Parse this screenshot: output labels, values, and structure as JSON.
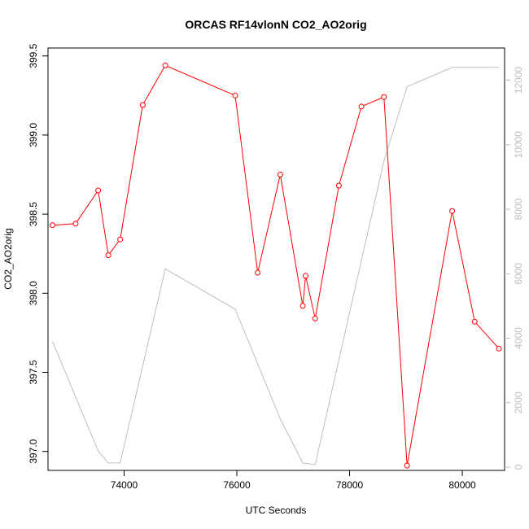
{
  "chart_data": {
    "type": "line",
    "title": "ORCAS RF14vlonN CO2_AO2orig",
    "xlabel": "UTC Seconds",
    "ylabel": "CO2_AO2orig",
    "xlim": [
      72650,
      80750
    ],
    "ylim": [
      396.88,
      399.55
    ],
    "y2lim": [
      -100,
      13000
    ],
    "x_ticks": [
      74000,
      76000,
      78000,
      80000
    ],
    "x_tick_labels": [
      "74000",
      "76000",
      "78000",
      "80000"
    ],
    "y_ticks": [
      397.0,
      397.5,
      398.0,
      398.5,
      399.0,
      399.5
    ],
    "y_tick_labels": [
      "397.0",
      "397.5",
      "398.0",
      "398.5",
      "399.0",
      "399.5"
    ],
    "y2_ticks": [
      0,
      2000,
      4000,
      6000,
      8000,
      10000,
      12000
    ],
    "y2_tick_labels": [
      "0",
      "2000",
      "4000",
      "6000",
      "8000",
      "10000",
      "12000"
    ],
    "grid": false,
    "colors": {
      "primary": "#ff0000",
      "secondary": "#bebebe",
      "axis": "#000000",
      "right_axis": "#bdbdbd"
    },
    "series": [
      {
        "axis": "left",
        "style": "line+points",
        "color": "#ff0000",
        "x": [
          72730,
          73140,
          73540,
          73720,
          73930,
          74330,
          74730,
          75970,
          76370,
          76770,
          77170,
          77220,
          77390,
          77810,
          78210,
          78610,
          79020,
          79820,
          80220,
          80650
        ],
        "y": [
          398.43,
          398.44,
          398.65,
          398.24,
          398.34,
          399.19,
          399.44,
          399.25,
          398.13,
          398.75,
          397.92,
          398.11,
          397.84,
          398.68,
          399.18,
          399.24,
          396.91,
          398.52,
          397.82,
          397.65
        ]
      },
      {
        "axis": "right",
        "style": "line",
        "color": "#bebebe",
        "x": [
          72730,
          73540,
          73720,
          73930,
          74730,
          75970,
          76770,
          77170,
          77390,
          78610,
          79020,
          79820,
          80650
        ],
        "y": [
          3900,
          500,
          130,
          130,
          6150,
          4900,
          1500,
          130,
          80,
          9500,
          11800,
          12400,
          12400
        ]
      }
    ]
  }
}
